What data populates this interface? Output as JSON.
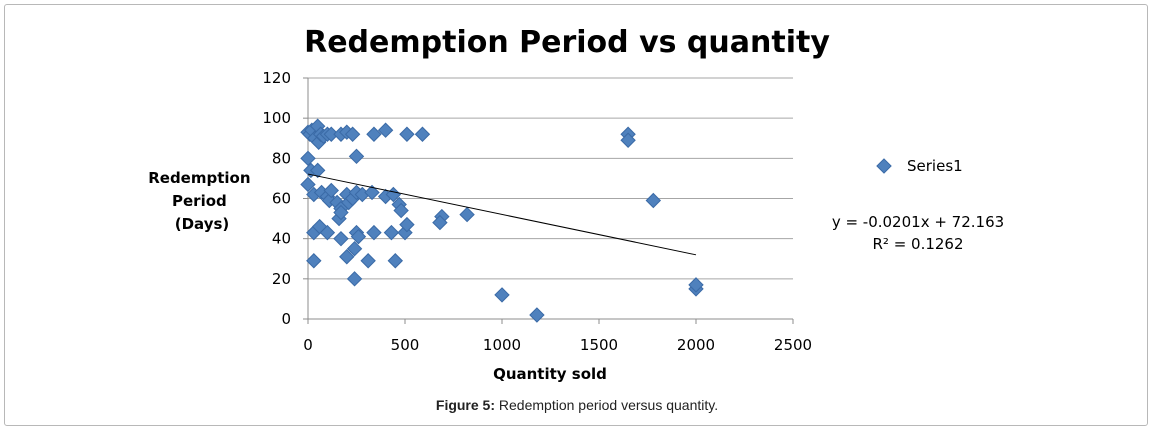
{
  "chart_data": {
    "type": "scatter",
    "title": "Redemption Period vs quantity",
    "xlabel": "Quantity sold",
    "ylabel_lines": [
      "Redemption",
      "Period",
      "(Days)"
    ],
    "xlim": [
      0,
      2500
    ],
    "ylim": [
      0,
      120
    ],
    "x_ticks": [
      0,
      500,
      1000,
      1500,
      2000,
      2500
    ],
    "y_ticks": [
      0,
      20,
      40,
      60,
      80,
      100,
      120
    ],
    "grid": "horizontal",
    "legend_position": "right",
    "marker_color": "#4f81bd",
    "marker_edge": "#3a6aa6",
    "series": [
      {
        "name": "Series1",
        "points": [
          [
            0,
            93
          ],
          [
            10,
            92
          ],
          [
            20,
            94
          ],
          [
            35,
            90
          ],
          [
            50,
            96
          ],
          [
            55,
            88
          ],
          [
            65,
            92
          ],
          [
            80,
            91
          ],
          [
            100,
            92
          ],
          [
            120,
            92
          ],
          [
            170,
            92
          ],
          [
            200,
            93
          ],
          [
            230,
            92
          ],
          [
            340,
            92
          ],
          [
            400,
            94
          ],
          [
            510,
            92
          ],
          [
            590,
            92
          ],
          [
            1650,
            92
          ],
          [
            1650,
            89
          ],
          [
            0,
            80
          ],
          [
            250,
            81
          ],
          [
            0,
            67
          ],
          [
            15,
            74
          ],
          [
            30,
            62
          ],
          [
            50,
            74
          ],
          [
            70,
            63
          ],
          [
            100,
            61
          ],
          [
            110,
            59
          ],
          [
            120,
            64
          ],
          [
            150,
            58
          ],
          [
            170,
            55
          ],
          [
            200,
            62
          ],
          [
            210,
            58
          ],
          [
            230,
            60
          ],
          [
            250,
            63
          ],
          [
            280,
            62
          ],
          [
            330,
            63
          ],
          [
            400,
            61
          ],
          [
            440,
            62
          ],
          [
            470,
            57
          ],
          [
            480,
            54
          ],
          [
            1780,
            59
          ],
          [
            160,
            50
          ],
          [
            170,
            53
          ],
          [
            690,
            51
          ],
          [
            680,
            48
          ],
          [
            820,
            52
          ],
          [
            30,
            43
          ],
          [
            60,
            46
          ],
          [
            100,
            43
          ],
          [
            170,
            40
          ],
          [
            250,
            43
          ],
          [
            260,
            41
          ],
          [
            340,
            43
          ],
          [
            430,
            43
          ],
          [
            500,
            43
          ],
          [
            510,
            47
          ],
          [
            240,
            35
          ],
          [
            200,
            31
          ],
          [
            310,
            29
          ],
          [
            450,
            29
          ],
          [
            30,
            29
          ],
          [
            240,
            20
          ],
          [
            1000,
            12
          ],
          [
            1180,
            2
          ],
          [
            2000,
            15
          ],
          [
            2000,
            17
          ]
        ]
      }
    ],
    "trendline": {
      "slope": -0.0201,
      "intercept": 72.163,
      "x_range": [
        0,
        2000
      ],
      "color": "#000000",
      "equation_text": "y = -0.0201x + 72.163",
      "r2_text": "R² = 0.1262"
    }
  },
  "caption": {
    "label": "Figure 5:",
    "text": " Redemption period versus quantity."
  }
}
